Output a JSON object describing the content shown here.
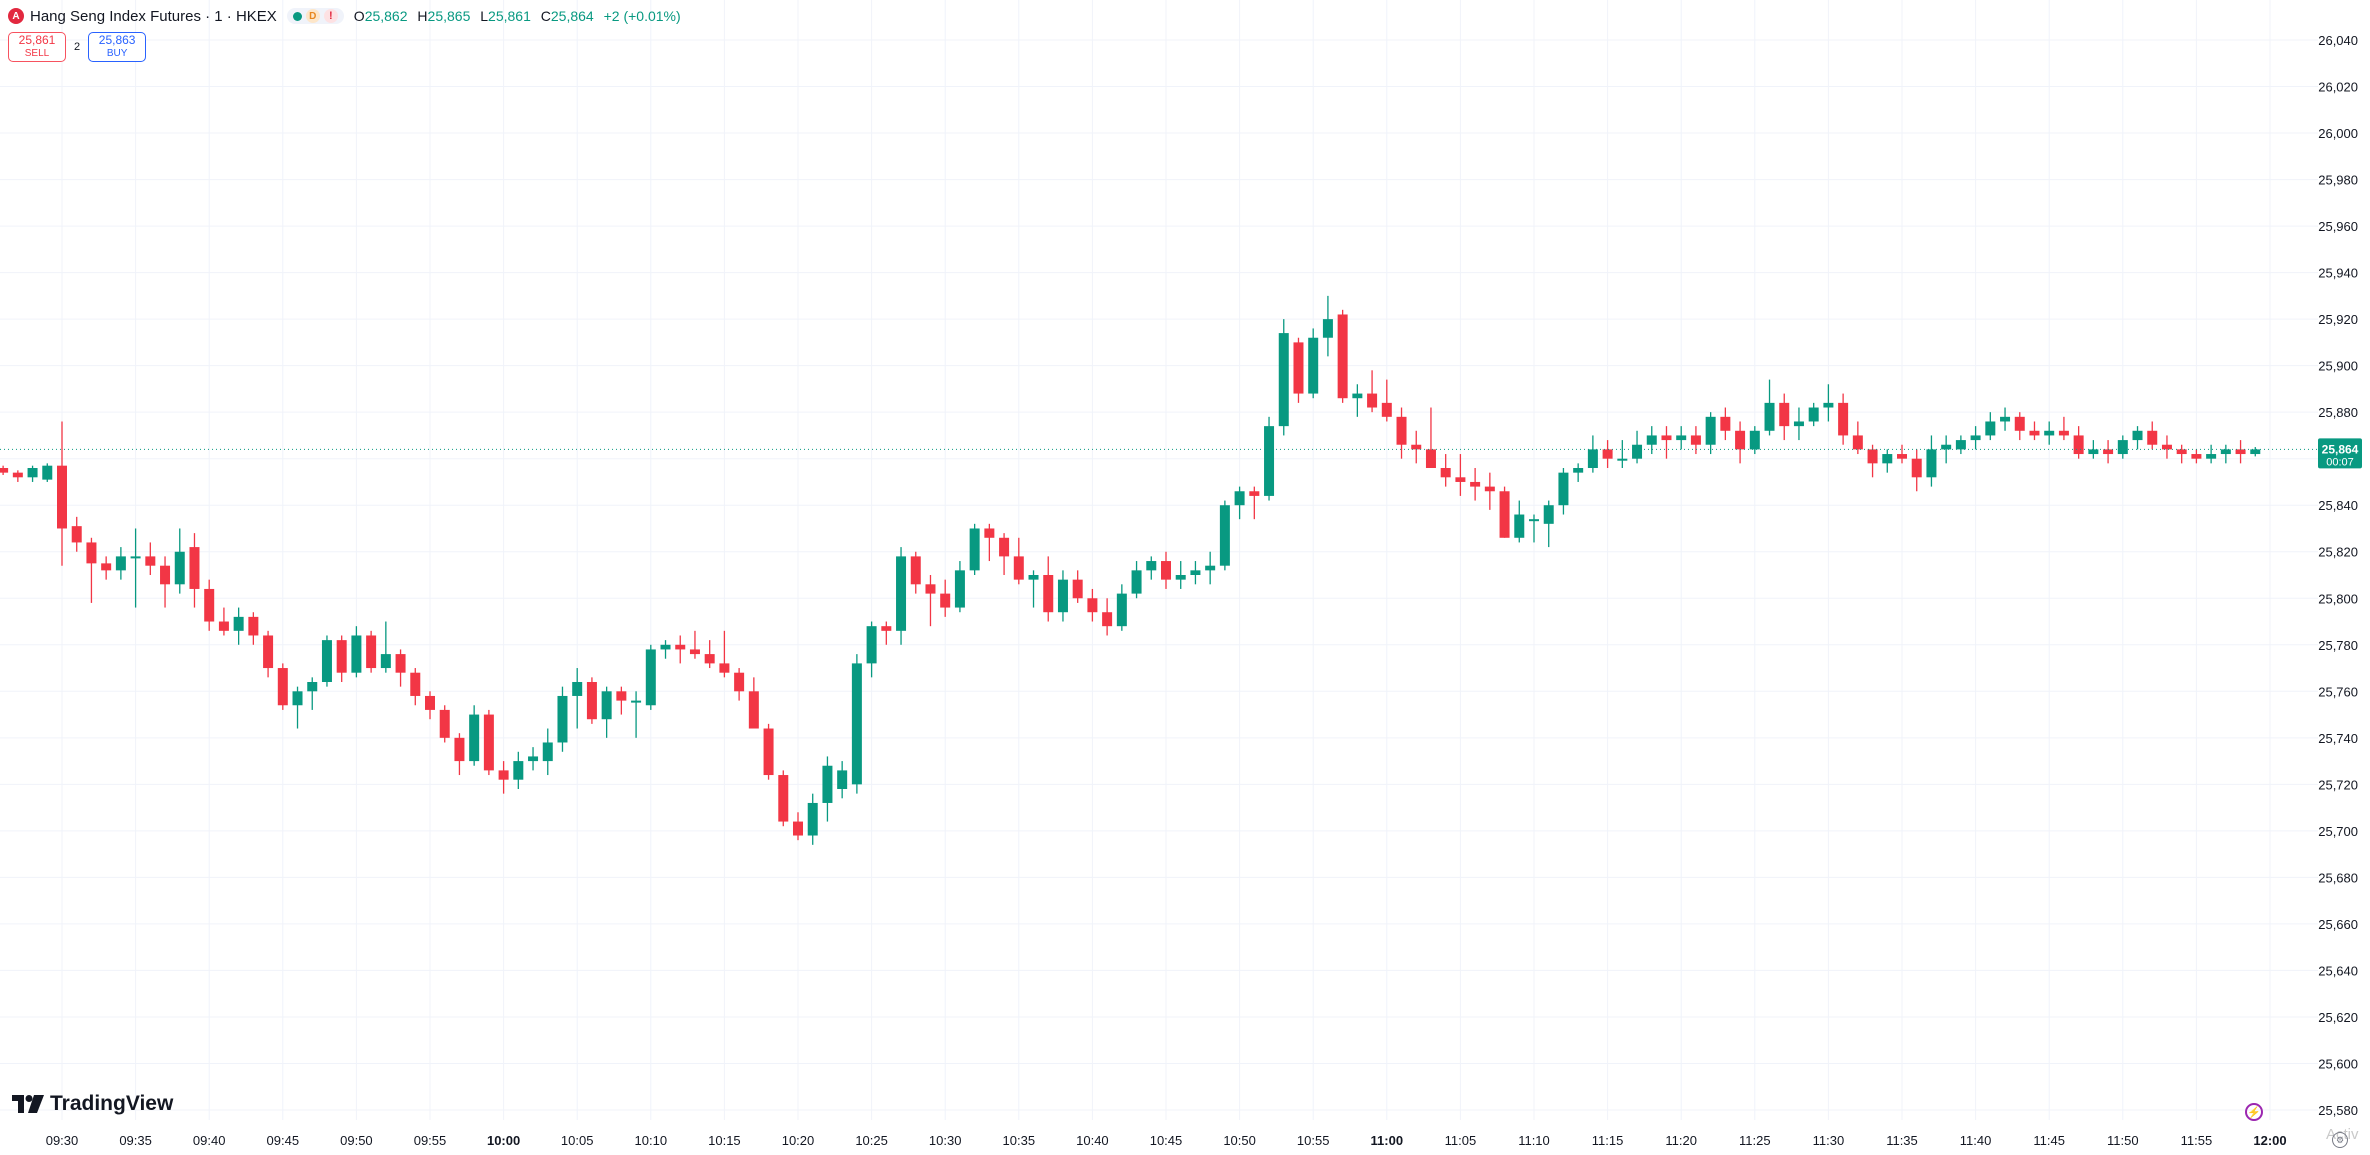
{
  "symbol": {
    "badge": "A",
    "title": "Hang Seng Index Futures · 1 · HKEX",
    "pill_d": "D",
    "pill_e": "!"
  },
  "ohlc": {
    "o_label": "O",
    "o": "25,862",
    "h_label": "H",
    "h": "25,865",
    "l_label": "L",
    "l": "25,861",
    "c_label": "C",
    "c": "25,864",
    "change": "+2 (+0.01%)"
  },
  "trade": {
    "sell_price": "25,861",
    "sell_label": "SELL",
    "quantity": "2",
    "buy_price": "25,863",
    "buy_label": "BUY"
  },
  "brand": "TradingView",
  "watermark": "Activ",
  "colors": {
    "up": "#089981",
    "down": "#f23645",
    "grid": "#f0f3fa",
    "last_price": "#089981"
  },
  "chart_data": {
    "type": "candlestick",
    "interval": "1 minute",
    "ylim": [
      25570,
      26050
    ],
    "yticks": [
      25580,
      25600,
      25620,
      25640,
      25660,
      25680,
      25700,
      25720,
      25740,
      25760,
      25780,
      25800,
      25820,
      25840,
      25860,
      25880,
      25900,
      25920,
      25940,
      25960,
      25980,
      26000,
      26020,
      26040
    ],
    "xticks": [
      {
        "label": "09:30",
        "minute": 0,
        "bold": false
      },
      {
        "label": "09:35",
        "minute": 5,
        "bold": false
      },
      {
        "label": "09:40",
        "minute": 10,
        "bold": false
      },
      {
        "label": "09:45",
        "minute": 15,
        "bold": false
      },
      {
        "label": "09:50",
        "minute": 20,
        "bold": false
      },
      {
        "label": "09:55",
        "minute": 25,
        "bold": false
      },
      {
        "label": "10:00",
        "minute": 30,
        "bold": true
      },
      {
        "label": "10:05",
        "minute": 35,
        "bold": false
      },
      {
        "label": "10:10",
        "minute": 40,
        "bold": false
      },
      {
        "label": "10:15",
        "minute": 45,
        "bold": false
      },
      {
        "label": "10:20",
        "minute": 50,
        "bold": false
      },
      {
        "label": "10:25",
        "minute": 55,
        "bold": false
      },
      {
        "label": "10:30",
        "minute": 60,
        "bold": false
      },
      {
        "label": "10:35",
        "minute": 65,
        "bold": false
      },
      {
        "label": "10:40",
        "minute": 70,
        "bold": false
      },
      {
        "label": "10:45",
        "minute": 75,
        "bold": false
      },
      {
        "label": "10:50",
        "minute": 80,
        "bold": false
      },
      {
        "label": "10:55",
        "minute": 85,
        "bold": false
      },
      {
        "label": "11:00",
        "minute": 90,
        "bold": true
      },
      {
        "label": "11:05",
        "minute": 95,
        "bold": false
      },
      {
        "label": "11:10",
        "minute": 100,
        "bold": false
      },
      {
        "label": "11:15",
        "minute": 105,
        "bold": false
      },
      {
        "label": "11:20",
        "minute": 110,
        "bold": false
      },
      {
        "label": "11:25",
        "minute": 115,
        "bold": false
      },
      {
        "label": "11:30",
        "minute": 120,
        "bold": false
      },
      {
        "label": "11:35",
        "minute": 125,
        "bold": false
      },
      {
        "label": "11:40",
        "minute": 130,
        "bold": false
      },
      {
        "label": "11:45",
        "minute": 135,
        "bold": false
      },
      {
        "label": "11:50",
        "minute": 140,
        "bold": false
      },
      {
        "label": "11:55",
        "minute": 145,
        "bold": false
      },
      {
        "label": "12:00",
        "minute": 150,
        "bold": true
      }
    ],
    "last_price": 25864,
    "last_price_label": "25,864",
    "countdown": "00:07",
    "candles": [
      [
        -4,
        25856,
        25857,
        25853,
        25854
      ],
      [
        -3,
        25854,
        25855,
        25850,
        25852
      ],
      [
        -2,
        25852,
        25857,
        25850,
        25856
      ],
      [
        -1,
        25851,
        25858,
        25850,
        25857
      ],
      [
        0,
        25857,
        25876,
        25814,
        25830
      ],
      [
        1,
        25831,
        25835,
        25820,
        25824
      ],
      [
        2,
        25824,
        25826,
        25798,
        25815
      ],
      [
        3,
        25815,
        25818,
        25808,
        25812
      ],
      [
        4,
        25812,
        25822,
        25808,
        25818
      ],
      [
        5,
        25818,
        25830,
        25796,
        25818
      ],
      [
        6,
        25818,
        25824,
        25810,
        25814
      ],
      [
        7,
        25814,
        25818,
        25796,
        25806
      ],
      [
        8,
        25806,
        25830,
        25802,
        25820
      ],
      [
        9,
        25822,
        25828,
        25796,
        25804
      ],
      [
        10,
        25804,
        25808,
        25786,
        25790
      ],
      [
        11,
        25790,
        25796,
        25784,
        25786
      ],
      [
        12,
        25786,
        25796,
        25780,
        25792
      ],
      [
        13,
        25792,
        25794,
        25780,
        25784
      ],
      [
        14,
        25784,
        25786,
        25766,
        25770
      ],
      [
        15,
        25770,
        25772,
        25752,
        25754
      ],
      [
        16,
        25754,
        25762,
        25744,
        25760
      ],
      [
        17,
        25760,
        25766,
        25752,
        25764
      ],
      [
        18,
        25764,
        25784,
        25762,
        25782
      ],
      [
        19,
        25782,
        25784,
        25764,
        25768
      ],
      [
        20,
        25768,
        25788,
        25766,
        25784
      ],
      [
        21,
        25784,
        25786,
        25768,
        25770
      ],
      [
        22,
        25770,
        25790,
        25768,
        25776
      ],
      [
        23,
        25776,
        25778,
        25762,
        25768
      ],
      [
        24,
        25768,
        25770,
        25754,
        25758
      ],
      [
        25,
        25758,
        25760,
        25748,
        25752
      ],
      [
        26,
        25752,
        25754,
        25738,
        25740
      ],
      [
        27,
        25740,
        25742,
        25724,
        25730
      ],
      [
        28,
        25730,
        25754,
        25728,
        25750
      ],
      [
        29,
        25750,
        25752,
        25724,
        25726
      ],
      [
        30,
        25726,
        25730,
        25716,
        25722
      ],
      [
        31,
        25722,
        25734,
        25718,
        25730
      ],
      [
        32,
        25730,
        25736,
        25726,
        25732
      ],
      [
        33,
        25730,
        25744,
        25724,
        25738
      ],
      [
        34,
        25738,
        25762,
        25734,
        25758
      ],
      [
        35,
        25758,
        25770,
        25744,
        25764
      ],
      [
        36,
        25764,
        25766,
        25746,
        25748
      ],
      [
        37,
        25748,
        25762,
        25740,
        25760
      ],
      [
        38,
        25760,
        25762,
        25750,
        25756
      ],
      [
        39,
        25756,
        25760,
        25740,
        25756
      ],
      [
        40,
        25754,
        25780,
        25752,
        25778
      ],
      [
        41,
        25778,
        25782,
        25774,
        25780
      ],
      [
        42,
        25780,
        25784,
        25772,
        25778
      ],
      [
        43,
        25778,
        25786,
        25774,
        25776
      ],
      [
        44,
        25776,
        25782,
        25770,
        25772
      ],
      [
        45,
        25772,
        25786,
        25766,
        25768
      ],
      [
        46,
        25768,
        25770,
        25756,
        25760
      ],
      [
        47,
        25760,
        25766,
        25748,
        25744
      ],
      [
        48,
        25744,
        25746,
        25722,
        25724
      ],
      [
        49,
        25724,
        25726,
        25702,
        25704
      ],
      [
        50,
        25704,
        25708,
        25696,
        25698
      ],
      [
        51,
        25698,
        25716,
        25694,
        25712
      ],
      [
        52,
        25712,
        25732,
        25704,
        25728
      ],
      [
        53,
        25718,
        25730,
        25714,
        25726
      ],
      [
        54,
        25720,
        25776,
        25716,
        25772
      ],
      [
        55,
        25772,
        25790,
        25766,
        25788
      ],
      [
        56,
        25788,
        25790,
        25780,
        25786
      ],
      [
        57,
        25786,
        25822,
        25780,
        25818
      ],
      [
        58,
        25818,
        25820,
        25802,
        25806
      ],
      [
        59,
        25806,
        25810,
        25788,
        25802
      ],
      [
        60,
        25802,
        25808,
        25792,
        25796
      ],
      [
        61,
        25796,
        25816,
        25794,
        25812
      ],
      [
        62,
        25812,
        25832,
        25810,
        25830
      ],
      [
        63,
        25830,
        25832,
        25816,
        25826
      ],
      [
        64,
        25826,
        25828,
        25810,
        25818
      ],
      [
        65,
        25818,
        25826,
        25806,
        25808
      ],
      [
        66,
        25808,
        25812,
        25796,
        25810
      ],
      [
        67,
        25810,
        25818,
        25790,
        25794
      ],
      [
        68,
        25794,
        25812,
        25790,
        25808
      ],
      [
        69,
        25808,
        25812,
        25798,
        25800
      ],
      [
        70,
        25800,
        25804,
        25790,
        25794
      ],
      [
        71,
        25794,
        25800,
        25784,
        25788
      ],
      [
        72,
        25788,
        25806,
        25786,
        25802
      ],
      [
        73,
        25802,
        25816,
        25800,
        25812
      ],
      [
        74,
        25812,
        25818,
        25808,
        25816
      ],
      [
        75,
        25816,
        25820,
        25804,
        25808
      ],
      [
        76,
        25808,
        25816,
        25804,
        25810
      ],
      [
        77,
        25810,
        25816,
        25806,
        25812
      ],
      [
        78,
        25812,
        25820,
        25806,
        25814
      ],
      [
        79,
        25814,
        25842,
        25812,
        25840
      ],
      [
        80,
        25840,
        25848,
        25834,
        25846
      ],
      [
        81,
        25846,
        25848,
        25834,
        25844
      ],
      [
        82,
        25844,
        25878,
        25842,
        25874
      ],
      [
        83,
        25874,
        25920,
        25870,
        25914
      ],
      [
        84,
        25910,
        25912,
        25884,
        25888
      ],
      [
        85,
        25888,
        25916,
        25886,
        25912
      ],
      [
        86,
        25912,
        25930,
        25904,
        25920
      ],
      [
        87,
        25922,
        25924,
        25884,
        25886
      ],
      [
        88,
        25886,
        25892,
        25878,
        25888
      ],
      [
        89,
        25888,
        25898,
        25880,
        25882
      ],
      [
        90,
        25884,
        25894,
        25876,
        25878
      ],
      [
        91,
        25878,
        25882,
        25860,
        25866
      ],
      [
        92,
        25866,
        25872,
        25858,
        25864
      ],
      [
        93,
        25864,
        25882,
        25856,
        25856
      ],
      [
        94,
        25856,
        25862,
        25848,
        25852
      ],
      [
        95,
        25852,
        25862,
        25844,
        25850
      ],
      [
        96,
        25850,
        25856,
        25842,
        25848
      ],
      [
        97,
        25848,
        25854,
        25838,
        25846
      ],
      [
        98,
        25846,
        25848,
        25826,
        25826
      ],
      [
        99,
        25826,
        25842,
        25824,
        25836
      ],
      [
        100,
        25834,
        25836,
        25824,
        25834
      ],
      [
        101,
        25832,
        25842,
        25822,
        25840
      ],
      [
        102,
        25840,
        25856,
        25836,
        25854
      ],
      [
        103,
        25854,
        25858,
        25850,
        25856
      ],
      [
        104,
        25856,
        25870,
        25854,
        25864
      ],
      [
        105,
        25864,
        25868,
        25856,
        25860
      ],
      [
        106,
        25860,
        25868,
        25856,
        25860
      ],
      [
        107,
        25860,
        25872,
        25858,
        25866
      ],
      [
        108,
        25866,
        25874,
        25862,
        25870
      ],
      [
        109,
        25870,
        25874,
        25860,
        25868
      ],
      [
        110,
        25868,
        25874,
        25864,
        25870
      ],
      [
        111,
        25870,
        25874,
        25862,
        25866
      ],
      [
        112,
        25866,
        25880,
        25862,
        25878
      ],
      [
        113,
        25878,
        25882,
        25868,
        25872
      ],
      [
        114,
        25872,
        25876,
        25858,
        25864
      ],
      [
        115,
        25864,
        25874,
        25862,
        25872
      ],
      [
        116,
        25872,
        25894,
        25870,
        25884
      ],
      [
        117,
        25884,
        25888,
        25868,
        25874
      ],
      [
        118,
        25874,
        25882,
        25868,
        25876
      ],
      [
        119,
        25876,
        25884,
        25874,
        25882
      ],
      [
        120,
        25882,
        25892,
        25876,
        25884
      ],
      [
        121,
        25884,
        25888,
        25866,
        25870
      ],
      [
        122,
        25870,
        25876,
        25862,
        25864
      ],
      [
        123,
        25864,
        25866,
        25852,
        25858
      ],
      [
        124,
        25858,
        25864,
        25854,
        25862
      ],
      [
        125,
        25862,
        25866,
        25858,
        25860
      ],
      [
        126,
        25860,
        25864,
        25846,
        25852
      ],
      [
        127,
        25852,
        25870,
        25848,
        25864
      ],
      [
        128,
        25864,
        25870,
        25858,
        25866
      ],
      [
        129,
        25864,
        25870,
        25862,
        25868
      ],
      [
        130,
        25868,
        25874,
        25864,
        25870
      ],
      [
        131,
        25870,
        25880,
        25868,
        25876
      ],
      [
        132,
        25876,
        25882,
        25872,
        25878
      ],
      [
        133,
        25878,
        25880,
        25868,
        25872
      ],
      [
        134,
        25872,
        25876,
        25868,
        25870
      ],
      [
        135,
        25870,
        25876,
        25866,
        25872
      ],
      [
        136,
        25872,
        25878,
        25868,
        25870
      ],
      [
        137,
        25870,
        25874,
        25860,
        25862
      ],
      [
        138,
        25862,
        25868,
        25860,
        25864
      ],
      [
        139,
        25864,
        25868,
        25858,
        25862
      ],
      [
        140,
        25862,
        25870,
        25860,
        25868
      ],
      [
        141,
        25868,
        25874,
        25864,
        25872
      ],
      [
        142,
        25872,
        25876,
        25864,
        25866
      ],
      [
        143,
        25866,
        25870,
        25860,
        25864
      ],
      [
        144,
        25864,
        25866,
        25858,
        25862
      ],
      [
        145,
        25862,
        25864,
        25858,
        25860
      ],
      [
        146,
        25860,
        25866,
        25858,
        25862
      ],
      [
        147,
        25862,
        25866,
        25858,
        25864
      ],
      [
        148,
        25864,
        25868,
        25858,
        25862
      ],
      [
        149,
        25862,
        25865,
        25861,
        25864
      ]
    ]
  }
}
